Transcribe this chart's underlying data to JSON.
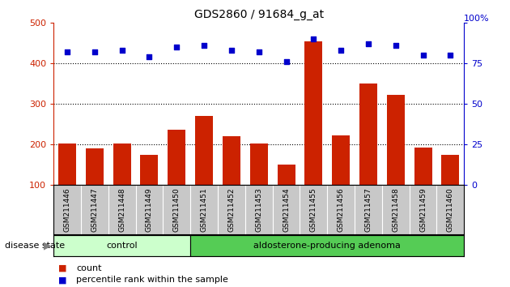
{
  "title": "GDS2860 / 91684_g_at",
  "samples": [
    "GSM211446",
    "GSM211447",
    "GSM211448",
    "GSM211449",
    "GSM211450",
    "GSM211451",
    "GSM211452",
    "GSM211453",
    "GSM211454",
    "GSM211455",
    "GSM211456",
    "GSM211457",
    "GSM211458",
    "GSM211459",
    "GSM211460"
  ],
  "counts": [
    203,
    190,
    203,
    175,
    237,
    270,
    220,
    202,
    150,
    455,
    223,
    350,
    323,
    192,
    175
  ],
  "percentiles": [
    82,
    82,
    83,
    79,
    85,
    86,
    83,
    82,
    76,
    90,
    83,
    87,
    86,
    80,
    80
  ],
  "bar_color": "#cc2200",
  "dot_color": "#0000cc",
  "ylim_left": [
    100,
    500
  ],
  "ylim_right": [
    0,
    100
  ],
  "yticks_left": [
    100,
    200,
    300,
    400,
    500
  ],
  "yticks_right": [
    0,
    25,
    50,
    75,
    100
  ],
  "grid_values": [
    200,
    300,
    400
  ],
  "control_count": 5,
  "adenoma_count": 10,
  "label_control": "control",
  "label_adenoma": "aldosterone-producing adenoma",
  "disease_state_label": "disease state",
  "legend_count": "count",
  "legend_percentile": "percentile rank within the sample",
  "color_left_axis": "#cc2200",
  "color_right_axis": "#0000cc",
  "control_color": "#ccffcc",
  "adenoma_color": "#55cc55",
  "xtick_bg": "#c8c8c8"
}
